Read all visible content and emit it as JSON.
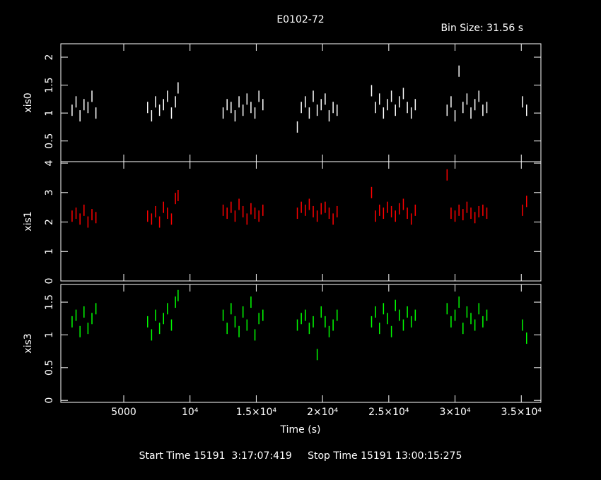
{
  "chart_data": {
    "type": "scatter",
    "title": "E0102-72",
    "subtitle": "Bin Size: 31.56 s",
    "x_label": "Time (s)",
    "footer": "Start Time 15191  3:17:07:419     Stop Time 15191 13:00:15:275",
    "xlim": [
      250,
      36480
    ],
    "xticks": [
      5000,
      {
        "value": 10000,
        "label": "10⁴"
      },
      {
        "value": 15000,
        "label": "1.5×10⁴"
      },
      {
        "value": 20000,
        "label": "2×10⁴"
      },
      {
        "value": 25000,
        "label": "2.5×10⁴"
      },
      {
        "value": 30000,
        "label": "3×10⁴"
      },
      {
        "value": 35000,
        "label": "3.5×10⁴"
      }
    ],
    "x": [
      1100,
      1400,
      1700,
      2000,
      2300,
      2600,
      2900,
      6800,
      7100,
      7400,
      7700,
      8000,
      8300,
      8600,
      8900,
      9100,
      12500,
      12800,
      13100,
      13400,
      13700,
      14000,
      14300,
      14600,
      14900,
      15200,
      15500,
      18100,
      18400,
      18700,
      19000,
      19300,
      19600,
      19900,
      20200,
      20500,
      20800,
      21100,
      23700,
      24000,
      24300,
      24600,
      24900,
      25200,
      25500,
      25800,
      26100,
      26400,
      26700,
      27000,
      29400,
      29700,
      30000,
      30300,
      30600,
      30900,
      31200,
      31500,
      31800,
      32100,
      32400,
      35100,
      35400
    ],
    "series": [
      {
        "name": "xis0",
        "color": "#ffffff",
        "ylim": [
          0.13,
          2.24
        ],
        "yticks": [
          0.5,
          1,
          1.5,
          2
        ],
        "values": [
          1.05,
          1.2,
          0.95,
          1.15,
          1.1,
          1.3,
          1.0,
          1.1,
          0.95,
          1.2,
          1.05,
          1.15,
          1.3,
          1.0,
          1.2,
          1.45,
          1.0,
          1.15,
          1.1,
          0.95,
          1.2,
          1.05,
          1.25,
          1.1,
          1.0,
          1.3,
          1.15,
          0.75,
          1.1,
          1.2,
          1.0,
          1.3,
          1.05,
          1.15,
          1.25,
          0.95,
          1.1,
          1.05,
          1.4,
          1.1,
          1.25,
          1.0,
          1.15,
          1.3,
          1.05,
          1.2,
          1.35,
          1.1,
          1.0,
          1.15,
          1.05,
          1.2,
          0.95,
          1.75,
          1.1,
          1.25,
          1.0,
          1.15,
          1.3,
          1.05,
          1.1,
          1.2,
          1.05
        ]
      },
      {
        "name": "xis1",
        "color": "#ff0000",
        "ylim": [
          0,
          4.05
        ],
        "yticks": [
          0,
          1,
          2,
          3,
          4
        ],
        "values": [
          2.2,
          2.3,
          2.1,
          2.4,
          2.0,
          2.25,
          2.15,
          2.2,
          2.1,
          2.35,
          2.0,
          2.5,
          2.3,
          2.1,
          2.8,
          2.9,
          2.4,
          2.3,
          2.5,
          2.2,
          2.6,
          2.35,
          2.1,
          2.45,
          2.3,
          2.2,
          2.4,
          2.3,
          2.5,
          2.4,
          2.6,
          2.35,
          2.2,
          2.45,
          2.5,
          2.3,
          2.1,
          2.35,
          3.0,
          2.2,
          2.4,
          2.3,
          2.5,
          2.35,
          2.2,
          2.45,
          2.6,
          2.3,
          2.1,
          2.4,
          3.6,
          2.3,
          2.2,
          2.4,
          2.25,
          2.5,
          2.3,
          2.15,
          2.35,
          2.4,
          2.3,
          2.4,
          2.7
        ]
      },
      {
        "name": "xis3",
        "color": "#00ff00",
        "ylim": [
          -0.03,
          1.77
        ],
        "yticks": [
          0,
          0.5,
          1,
          1.5
        ],
        "values": [
          1.2,
          1.3,
          1.05,
          1.35,
          1.1,
          1.25,
          1.4,
          1.2,
          1.0,
          1.3,
          1.1,
          1.25,
          1.4,
          1.15,
          1.5,
          1.6,
          1.3,
          1.1,
          1.4,
          1.2,
          1.05,
          1.35,
          1.15,
          1.5,
          1.0,
          1.25,
          1.3,
          1.15,
          1.25,
          1.3,
          1.1,
          1.2,
          0.7,
          1.35,
          1.2,
          1.05,
          1.15,
          1.3,
          1.2,
          1.35,
          1.1,
          1.4,
          1.25,
          1.05,
          1.45,
          1.3,
          1.15,
          1.35,
          1.2,
          1.3,
          1.4,
          1.2,
          1.3,
          1.5,
          1.1,
          1.35,
          1.25,
          1.15,
          1.4,
          1.2,
          1.3,
          1.15,
          0.95
        ]
      }
    ]
  }
}
